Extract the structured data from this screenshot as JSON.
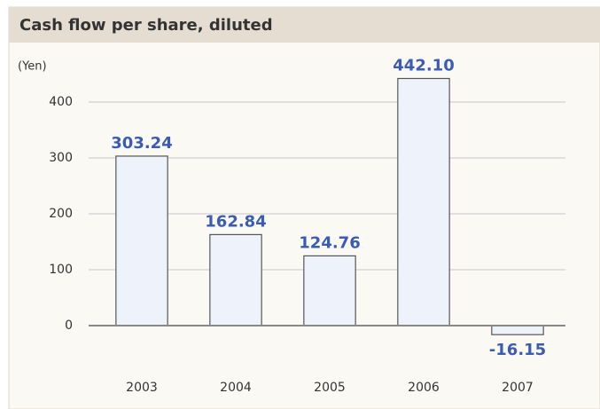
{
  "chart_data": {
    "type": "bar",
    "title": "Cash flow per share, diluted",
    "y_label": "(Yen)",
    "categories": [
      "2003",
      "2004",
      "2005",
      "2006",
      "2007"
    ],
    "values": [
      303.24,
      162.84,
      124.76,
      442.1,
      -16.15
    ],
    "value_labels": [
      "303.24",
      "162.84",
      "124.76",
      "442.10",
      "-16.15"
    ],
    "color": "#eef3fb",
    "ylim": [
      -50,
      450
    ],
    "yticks": [
      0,
      100,
      200,
      300,
      400
    ],
    "grid": true
  }
}
